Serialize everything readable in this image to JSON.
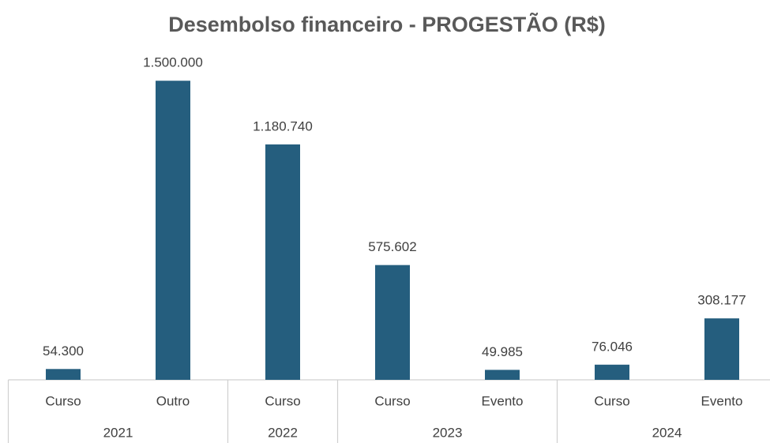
{
  "chart_data": {
    "type": "bar",
    "title": "Desembolso financeiro -  PROGESTÃO (R$)",
    "color": "#255e7e",
    "ylim": [
      0,
      1600000
    ],
    "groups": [
      {
        "name": "2021",
        "categories": [
          "Curso",
          "Outro"
        ],
        "values": [
          54300,
          1500000
        ],
        "value_labels": [
          "54.300",
          "1.500.000"
        ]
      },
      {
        "name": "2022",
        "categories": [
          "Curso"
        ],
        "values": [
          1180740
        ],
        "value_labels": [
          "1.180.740"
        ]
      },
      {
        "name": "2023",
        "categories": [
          "Curso",
          "Evento"
        ],
        "values": [
          575602,
          49985
        ],
        "value_labels": [
          "575.602",
          "49.985"
        ]
      },
      {
        "name": "2024",
        "categories": [
          "Curso",
          "Evento"
        ],
        "values": [
          76046,
          308177
        ],
        "value_labels": [
          "76.046",
          "308.177"
        ]
      }
    ]
  }
}
